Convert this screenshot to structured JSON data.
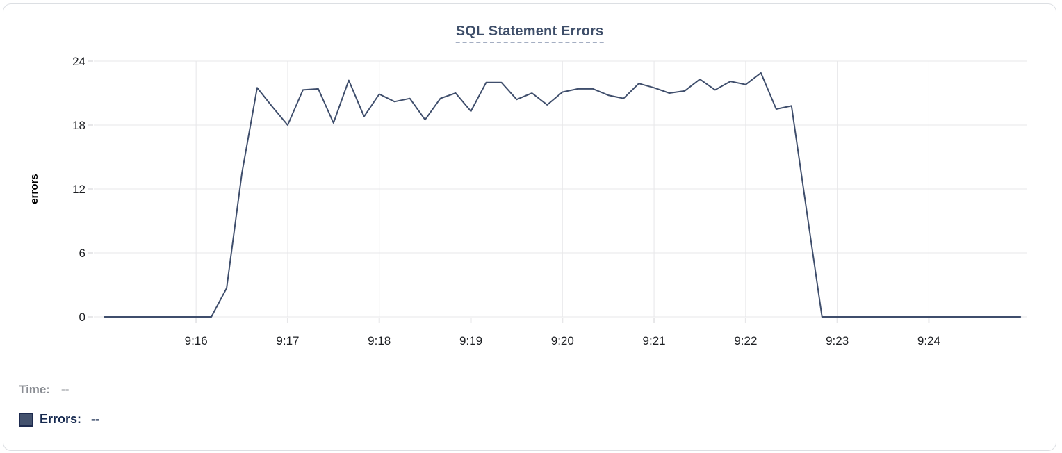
{
  "colors": {
    "card_border": "#dcdfe3",
    "title": "#3e4e69",
    "title_underline": "#a4aec2",
    "grid": "#e7e7e9",
    "tick_text": "#1d1f23",
    "axis_label": "#000000",
    "line": "#3f4e6c",
    "time_text": "#8a8d93",
    "errors_text": "#16294f",
    "swatch_fill": "#44526e",
    "swatch_border": "#1e2b4f"
  },
  "readout": {
    "time_label": "Time:",
    "time_value": "--",
    "errors_label": "Errors:",
    "errors_value": "--"
  },
  "chart_data": {
    "type": "line",
    "title": "SQL Statement Errors",
    "xlabel": "",
    "ylabel": "errors",
    "ylim": [
      0,
      24
    ],
    "yticks": [
      0,
      6,
      12,
      18,
      24
    ],
    "x_tick_labels": [
      "9:16",
      "9:17",
      "9:18",
      "9:19",
      "9:20",
      "9:21",
      "9:22",
      "9:23",
      "9:24"
    ],
    "x_tick_step_seconds": 60,
    "x_domain_seconds": [
      -67,
      544
    ],
    "grid": true,
    "legend_position": "bottom-left",
    "series": [
      {
        "name": "Errors",
        "color": "#3f4e6c",
        "times": [
          "9:15:00",
          "9:15:10",
          "9:15:20",
          "9:15:30",
          "9:15:40",
          "9:15:50",
          "9:16:00",
          "9:16:10",
          "9:16:20",
          "9:16:30",
          "9:16:40",
          "9:16:50",
          "9:17:00",
          "9:17:10",
          "9:17:20",
          "9:17:30",
          "9:17:40",
          "9:17:50",
          "9:18:00",
          "9:18:10",
          "9:18:20",
          "9:18:30",
          "9:18:40",
          "9:18:50",
          "9:19:00",
          "9:19:10",
          "9:19:20",
          "9:19:30",
          "9:19:40",
          "9:19:50",
          "9:20:00",
          "9:20:10",
          "9:20:20",
          "9:20:30",
          "9:20:40",
          "9:20:50",
          "9:21:00",
          "9:21:10",
          "9:21:20",
          "9:21:30",
          "9:21:40",
          "9:21:50",
          "9:22:00",
          "9:22:10",
          "9:22:20",
          "9:22:30",
          "9:22:40",
          "9:22:50",
          "9:23:00",
          "9:23:10",
          "9:23:20",
          "9:23:30",
          "9:23:40",
          "9:23:50",
          "9:24:00",
          "9:24:10",
          "9:24:20",
          "9:24:30",
          "9:24:40",
          "9:24:50",
          "9:25:00"
        ],
        "values": [
          0,
          0,
          0,
          0,
          0,
          0,
          0,
          0,
          2.7,
          13.5,
          21.5,
          19.7,
          18,
          21.3,
          21.4,
          18.2,
          22.2,
          18.8,
          20.9,
          20.2,
          20.5,
          18.5,
          20.5,
          21,
          19.3,
          22,
          22,
          20.4,
          21,
          19.9,
          21.1,
          21.4,
          21.4,
          20.8,
          20.5,
          21.9,
          21.5,
          21,
          21.2,
          22.3,
          21.3,
          22.1,
          21.8,
          22.9,
          19.5,
          19.8,
          9.9,
          0,
          0,
          0,
          0,
          0,
          0,
          0,
          0,
          0,
          0,
          0,
          0,
          0,
          0
        ]
      }
    ]
  }
}
